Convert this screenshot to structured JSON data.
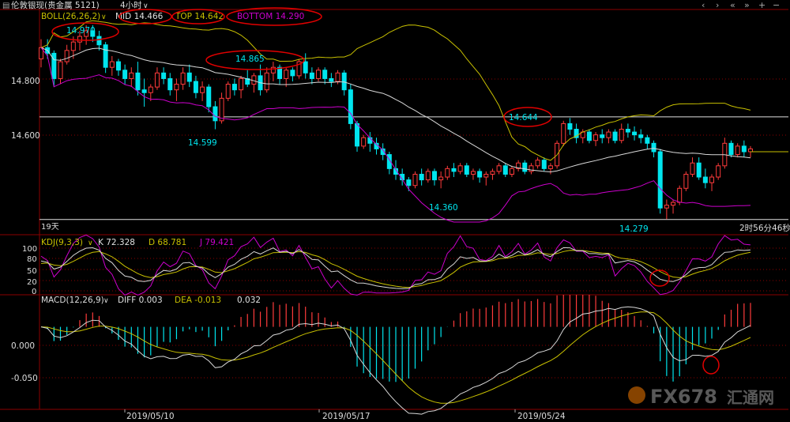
{
  "toolbar": {
    "symbol_title": "伦敦银现(贵金属 5121)",
    "period": "4小时",
    "window_controls": [
      "‹",
      "›",
      "«",
      "»",
      "+",
      "−"
    ]
  },
  "colors": {
    "up": "#ff3b3b",
    "down": "#00e5ee",
    "mid": "#d8d8d8",
    "top": "#c8c000",
    "bottom": "#cc00cc",
    "diff": "#d8d8d8",
    "dea": "#c8c000",
    "annot": "#e00000",
    "axis": "#8b0000",
    "hline": "#e0e0e0"
  },
  "boll_header": {
    "name": "BOLL(26,26,2)",
    "mid": "MID 14.466",
    "top": "TOP 14.642",
    "bottom": "BOTTOM 14.290"
  },
  "kdj_header": {
    "name": "KDJ(9,3,3)",
    "k": "K 72.328",
    "d": "D 68.781",
    "j": "J 79.421"
  },
  "macd_header": {
    "name": "MACD(12,26,9)",
    "diff": "DIFF 0.003",
    "dea": "DEA -0.013",
    "macd": "0.032"
  },
  "price_labels": {
    "high1": "14.970",
    "high2": "14.865",
    "low1": "14.599",
    "low2": "14.360",
    "high3": "14.644",
    "low3": "14.279",
    "days": "19天",
    "countdown": "2时56分46秒"
  },
  "axes": {
    "price_ticks": [
      "14.800",
      "14.600"
    ],
    "kdj_ticks": [
      "100",
      "80",
      "50",
      "20",
      "0"
    ],
    "macd_ticks": [
      "0.000",
      "-0.050"
    ],
    "dates": [
      "2019/05/10",
      "2019/05/17",
      "2019/05/24"
    ]
  },
  "watermark": {
    "text": "FX678",
    "sub": "汇通网"
  },
  "chart_data": {
    "type": "candlestick",
    "price_ylim": [
      14.27,
      15.02
    ],
    "hlines": [
      14.644,
      14.279
    ],
    "candles": [
      [
        14.85,
        14.92,
        14.82,
        14.89
      ],
      [
        14.89,
        14.92,
        14.85,
        14.87
      ],
      [
        14.87,
        14.88,
        14.75,
        14.78
      ],
      [
        14.78,
        14.85,
        14.76,
        14.84
      ],
      [
        14.84,
        14.9,
        14.83,
        14.88
      ],
      [
        14.88,
        14.93,
        14.85,
        14.91
      ],
      [
        14.91,
        14.95,
        14.88,
        14.93
      ],
      [
        14.93,
        14.97,
        14.9,
        14.95
      ],
      [
        14.95,
        14.97,
        14.91,
        14.93
      ],
      [
        14.93,
        14.95,
        14.88,
        14.9
      ],
      [
        14.9,
        14.91,
        14.8,
        14.82
      ],
      [
        14.82,
        14.86,
        14.79,
        14.84
      ],
      [
        14.84,
        14.85,
        14.79,
        14.81
      ],
      [
        14.81,
        14.83,
        14.76,
        14.78
      ],
      [
        14.78,
        14.82,
        14.75,
        14.8
      ],
      [
        14.8,
        14.84,
        14.72,
        14.74
      ],
      [
        14.74,
        14.78,
        14.68,
        14.73
      ],
      [
        14.73,
        14.76,
        14.7,
        14.75
      ],
      [
        14.75,
        14.82,
        14.74,
        14.8
      ],
      [
        14.8,
        14.82,
        14.76,
        14.78
      ],
      [
        14.78,
        14.8,
        14.72,
        14.74
      ],
      [
        14.74,
        14.78,
        14.7,
        14.76
      ],
      [
        14.76,
        14.82,
        14.74,
        14.8
      ],
      [
        14.8,
        14.83,
        14.75,
        14.77
      ],
      [
        14.77,
        14.79,
        14.71,
        14.73
      ],
      [
        14.73,
        14.77,
        14.7,
        14.75
      ],
      [
        14.75,
        14.76,
        14.66,
        14.68
      ],
      [
        14.68,
        14.7,
        14.6,
        14.63
      ],
      [
        14.63,
        14.73,
        14.62,
        14.71
      ],
      [
        14.71,
        14.77,
        14.7,
        14.76
      ],
      [
        14.76,
        14.78,
        14.72,
        14.74
      ],
      [
        14.74,
        14.79,
        14.71,
        14.78
      ],
      [
        14.78,
        14.81,
        14.75,
        14.76
      ],
      [
        14.76,
        14.8,
        14.73,
        14.79
      ],
      [
        14.79,
        14.83,
        14.72,
        14.74
      ],
      [
        14.74,
        14.82,
        14.73,
        14.8
      ],
      [
        14.8,
        14.84,
        14.77,
        14.82
      ],
      [
        14.82,
        14.83,
        14.76,
        14.78
      ],
      [
        14.78,
        14.82,
        14.75,
        14.81
      ],
      [
        14.81,
        14.82,
        14.77,
        14.79
      ],
      [
        14.79,
        14.85,
        14.78,
        14.84
      ],
      [
        14.84,
        14.87,
        14.78,
        14.8
      ],
      [
        14.8,
        14.82,
        14.76,
        14.78
      ],
      [
        14.78,
        14.82,
        14.77,
        14.81
      ],
      [
        14.81,
        14.82,
        14.76,
        14.78
      ],
      [
        14.78,
        14.8,
        14.75,
        14.77
      ],
      [
        14.77,
        14.81,
        14.76,
        14.8
      ],
      [
        14.8,
        14.81,
        14.72,
        14.74
      ],
      [
        14.74,
        14.76,
        14.6,
        14.62
      ],
      [
        14.62,
        14.63,
        14.52,
        14.54
      ],
      [
        14.54,
        14.58,
        14.53,
        14.57
      ],
      [
        14.57,
        14.59,
        14.52,
        14.55
      ],
      [
        14.55,
        14.57,
        14.51,
        14.53
      ],
      [
        14.53,
        14.55,
        14.49,
        14.51
      ],
      [
        14.51,
        14.52,
        14.44,
        14.46
      ],
      [
        14.46,
        14.49,
        14.42,
        14.44
      ],
      [
        14.44,
        14.46,
        14.4,
        14.42
      ],
      [
        14.42,
        14.43,
        14.38,
        14.4
      ],
      [
        14.4,
        14.45,
        14.39,
        14.44
      ],
      [
        14.44,
        14.46,
        14.4,
        14.42
      ],
      [
        14.42,
        14.46,
        14.41,
        14.45
      ],
      [
        14.45,
        14.46,
        14.4,
        14.42
      ],
      [
        14.42,
        14.45,
        14.39,
        14.43
      ],
      [
        14.43,
        14.47,
        14.42,
        14.46
      ],
      [
        14.46,
        14.48,
        14.43,
        14.45
      ],
      [
        14.45,
        14.48,
        14.44,
        14.47
      ],
      [
        14.47,
        14.48,
        14.43,
        14.44
      ],
      [
        14.44,
        14.46,
        14.42,
        14.45
      ],
      [
        14.45,
        14.46,
        14.41,
        14.43
      ],
      [
        14.43,
        14.45,
        14.4,
        14.44
      ],
      [
        14.44,
        14.46,
        14.42,
        14.45
      ],
      [
        14.45,
        14.48,
        14.44,
        14.47
      ],
      [
        14.47,
        14.48,
        14.43,
        14.44
      ],
      [
        14.44,
        14.47,
        14.43,
        14.46
      ],
      [
        14.46,
        14.49,
        14.45,
        14.48
      ],
      [
        14.48,
        14.49,
        14.44,
        14.45
      ],
      [
        14.45,
        14.48,
        14.44,
        14.47
      ],
      [
        14.47,
        14.5,
        14.46,
        14.49
      ],
      [
        14.49,
        14.5,
        14.45,
        14.46
      ],
      [
        14.46,
        14.48,
        14.44,
        14.47
      ],
      [
        14.47,
        14.56,
        14.46,
        14.55
      ],
      [
        14.55,
        14.63,
        14.54,
        14.62
      ],
      [
        14.62,
        14.64,
        14.58,
        14.6
      ],
      [
        14.6,
        14.62,
        14.55,
        14.57
      ],
      [
        14.57,
        14.6,
        14.55,
        14.59
      ],
      [
        14.59,
        14.6,
        14.55,
        14.56
      ],
      [
        14.56,
        14.59,
        14.54,
        14.58
      ],
      [
        14.58,
        14.6,
        14.55,
        14.57
      ],
      [
        14.57,
        14.6,
        14.55,
        14.59
      ],
      [
        14.59,
        14.6,
        14.55,
        14.56
      ],
      [
        14.56,
        14.62,
        14.55,
        14.6
      ],
      [
        14.6,
        14.62,
        14.57,
        14.59
      ],
      [
        14.59,
        14.61,
        14.56,
        14.58
      ],
      [
        14.58,
        14.6,
        14.55,
        14.57
      ],
      [
        14.57,
        14.58,
        14.53,
        14.55
      ],
      [
        14.55,
        14.56,
        14.5,
        14.52
      ],
      [
        14.52,
        14.53,
        14.3,
        14.32
      ],
      [
        14.32,
        14.35,
        14.28,
        14.33
      ],
      [
        14.33,
        14.35,
        14.3,
        14.34
      ],
      [
        14.34,
        14.4,
        14.33,
        14.39
      ],
      [
        14.39,
        14.45,
        14.38,
        14.44
      ],
      [
        14.44,
        14.5,
        14.43,
        14.48
      ],
      [
        14.48,
        14.5,
        14.42,
        14.43
      ],
      [
        14.43,
        14.46,
        14.39,
        14.41
      ],
      [
        14.41,
        14.44,
        14.38,
        14.43
      ],
      [
        14.43,
        14.48,
        14.42,
        14.47
      ],
      [
        14.47,
        14.57,
        14.46,
        14.55
      ],
      [
        14.55,
        14.56,
        14.5,
        14.51
      ],
      [
        14.51,
        14.55,
        14.5,
        14.54
      ],
      [
        14.54,
        14.56,
        14.5,
        14.52
      ],
      [
        14.52,
        14.54,
        14.5,
        14.53
      ]
    ],
    "kdj": {
      "ylim": [
        0,
        100
      ],
      "k_last": 72.328,
      "d_last": 68.781,
      "j_last": 79.421
    },
    "macd": {
      "ylim": [
        -0.09,
        0.035
      ],
      "diff_last": 0.003,
      "dea_last": -0.013,
      "macd_last": 0.032
    }
  }
}
